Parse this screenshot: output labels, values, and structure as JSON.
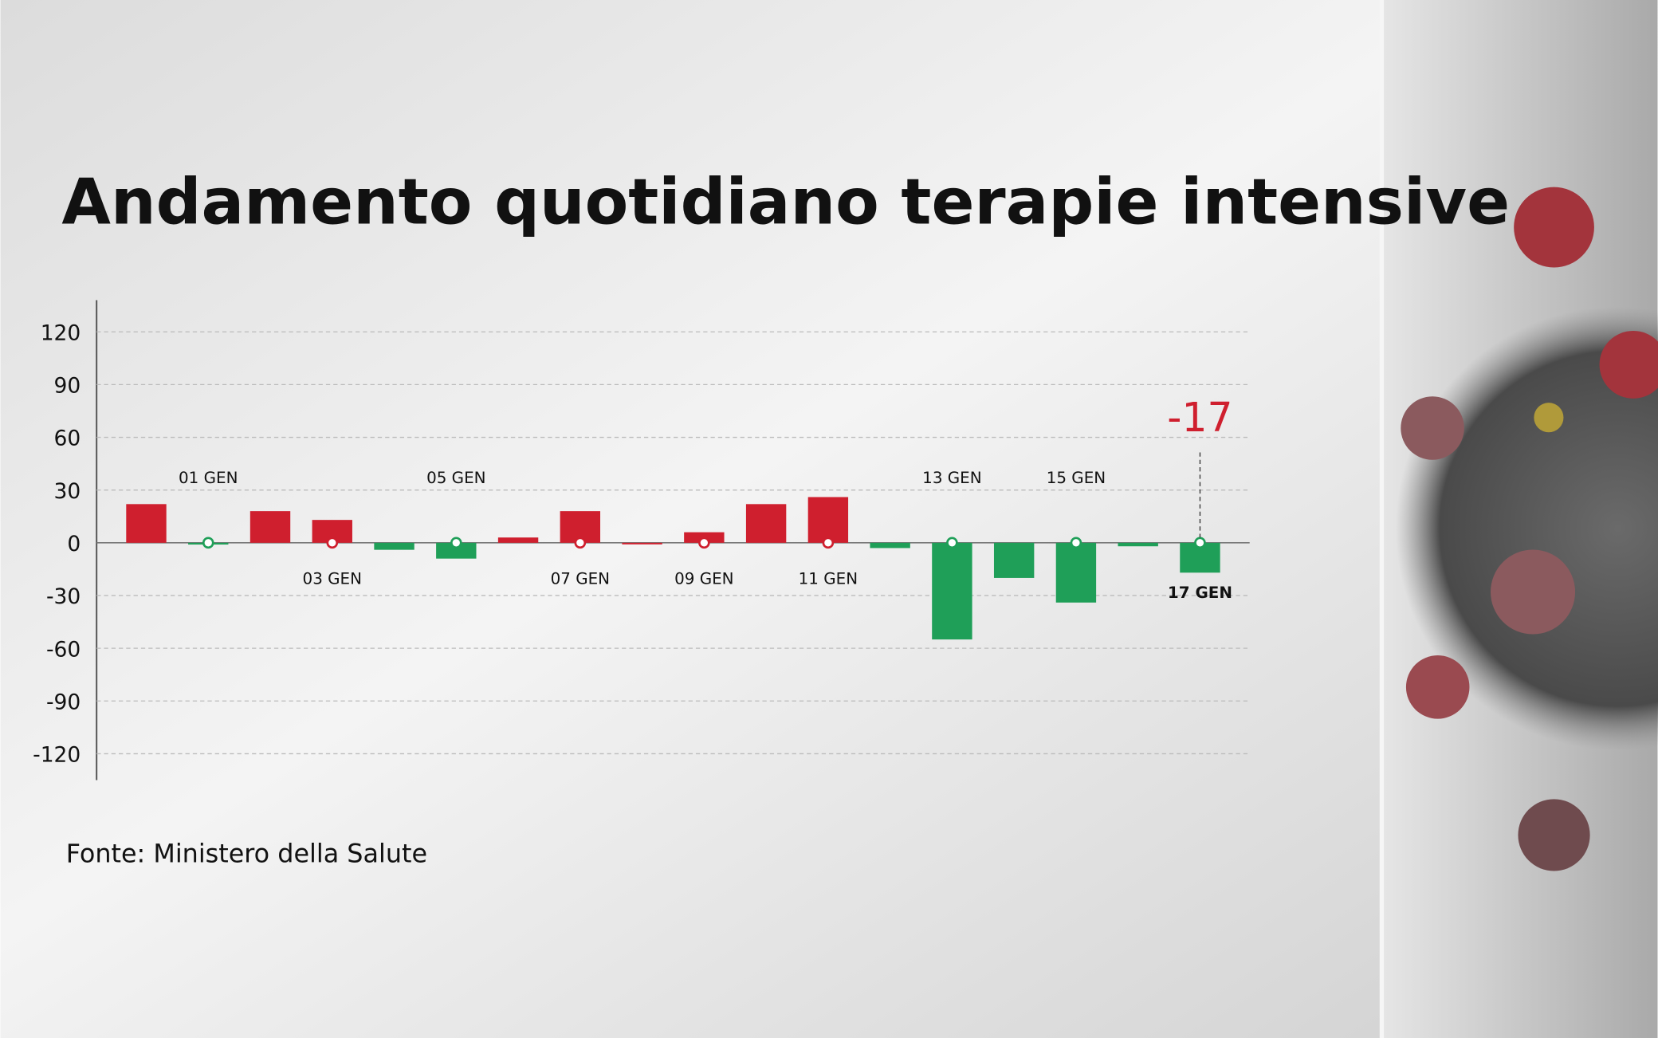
{
  "chart_data": {
    "type": "bar",
    "title": "Andamento quotidiano terapie intensive",
    "source": "Fonte: Ministero della Salute",
    "categories": [
      null,
      "01 GEN",
      null,
      "03 GEN",
      null,
      "05 GEN",
      null,
      "07 GEN",
      null,
      "09 GEN",
      null,
      "11 GEN",
      null,
      "13 GEN",
      null,
      "15 GEN",
      null,
      "17 GEN"
    ],
    "series": [
      {
        "values": [
          22,
          -1,
          18,
          13,
          -4,
          -9,
          3,
          18,
          0,
          6,
          22,
          26,
          -3,
          -55,
          -20,
          -34,
          -2,
          -17
        ]
      }
    ],
    "positive_color": "#cf1f2e",
    "negative_color": "#1f9f58",
    "highlight_color": "#cf1f2e",
    "ylim": [
      -135,
      138
    ],
    "yticks": [
      -120,
      -90,
      -60,
      -30,
      0,
      30,
      60,
      90,
      120
    ],
    "grid": true
  }
}
